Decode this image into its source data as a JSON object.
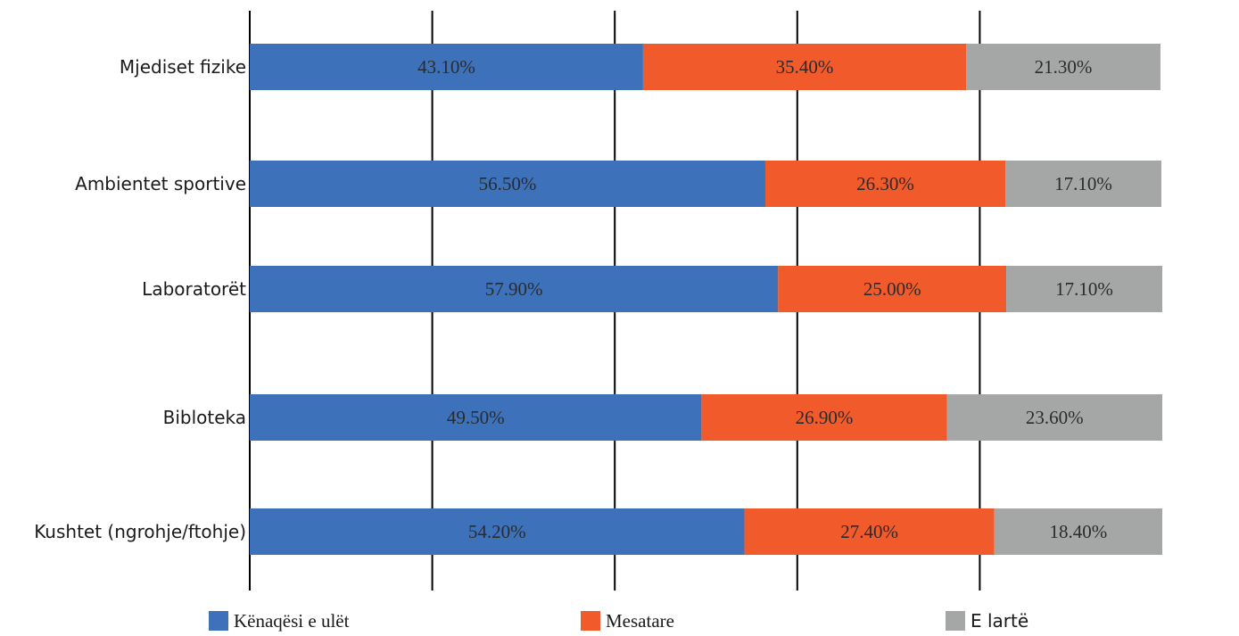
{
  "chart_data": {
    "type": "bar",
    "orientation": "horizontal",
    "stacked": true,
    "categories": [
      "Mjediset fizike",
      "Ambientet sportive",
      "Laboratorët",
      "Bibloteka",
      "Kushtet (ngrohje/ftohje)"
    ],
    "series": [
      {
        "name": "Kënaqësi e ulët",
        "color": "#3d72bb",
        "values": [
          43.1,
          56.5,
          57.9,
          49.5,
          54.2
        ],
        "labels": [
          "43.10%",
          "56.50%",
          "57.90%",
          "49.50%",
          "54.20%"
        ]
      },
      {
        "name": "Mesatare",
        "color": "#f15a2b",
        "values": [
          35.4,
          26.3,
          25.0,
          26.9,
          27.4
        ],
        "labels": [
          "35.40%",
          "26.30%",
          "25.00%",
          "26.90%",
          "27.40%"
        ]
      },
      {
        "name": "E lartë",
        "color": "#a5a7a7",
        "values": [
          21.3,
          17.1,
          17.1,
          23.6,
          18.4
        ],
        "labels": [
          "21.30%",
          "17.10%",
          "17.10%",
          "23.60%",
          "18.40%"
        ]
      }
    ],
    "xlim": [
      0,
      100
    ],
    "grid": true,
    "legend": "bottom"
  }
}
